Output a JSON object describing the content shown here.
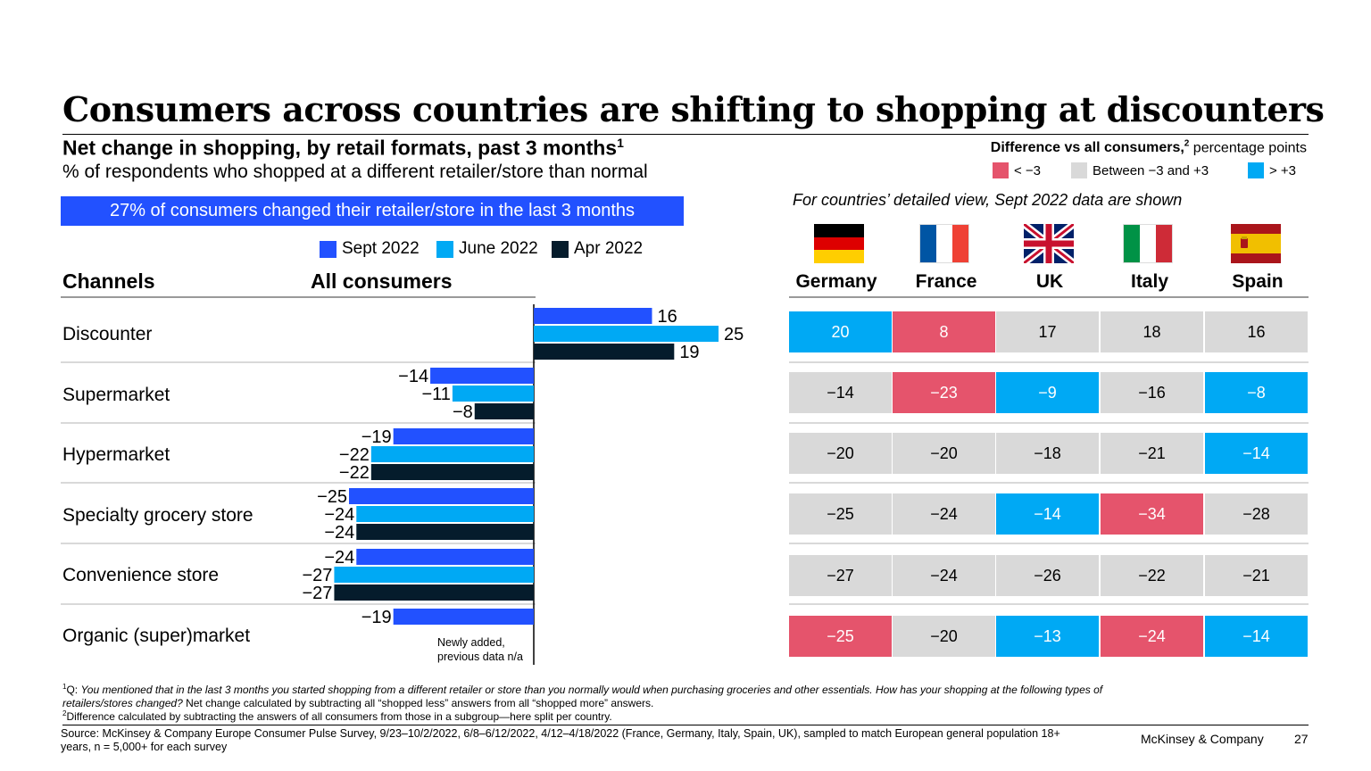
{
  "title": "Consumers across countries are shifting to shopping at discounters",
  "subtitle": "Net change in shopping, by retail formats, past 3 months",
  "subtitle_sup": "1",
  "subtitle2": "% of respondents who shopped at a different retailer/store than normal",
  "banner": "27% of consumers changed their retailer/store in the last 3 months",
  "legend": [
    {
      "label": "Sept 2022",
      "color": "#2251ff"
    },
    {
      "label": "June 2022",
      "color": "#00a9f4"
    },
    {
      "label": "Apr 2022",
      "color": "#051c2c"
    }
  ],
  "headers": {
    "channels": "Channels",
    "all": "All consumers"
  },
  "diff": {
    "title_bold": "Difference vs all consumers,",
    "title_sup": "2",
    "title_rest": " percentage points",
    "items": [
      {
        "label": "< −3",
        "color": "#e5546c"
      },
      {
        "label": "Between −3 and +3",
        "color": "#d9d9d9"
      },
      {
        "label": "> +3",
        "color": "#00a9f4"
      }
    ]
  },
  "country_note": "For countries’ detailed view, Sept 2022 data are shown",
  "countries": [
    {
      "name": "Germany",
      "flag": "germany-flag-icon"
    },
    {
      "name": "France",
      "flag": "france-flag-icon"
    },
    {
      "name": "UK",
      "flag": "uk-flag-icon"
    },
    {
      "name": "Italy",
      "flag": "italy-flag-icon"
    },
    {
      "name": "Spain",
      "flag": "spain-flag-icon"
    }
  ],
  "newly_added": [
    "Newly added,",
    "previous data n/a"
  ],
  "chart_data": {
    "type": "bar",
    "orientation": "horizontal",
    "categories": [
      "Discounter",
      "Supermarket",
      "Hypermarket",
      "Specialty grocery store",
      "Convenience store",
      "Organic (super)market"
    ],
    "series": [
      {
        "name": "Sept 2022",
        "values": [
          16,
          -14,
          -19,
          -25,
          -24,
          -19
        ]
      },
      {
        "name": "June 2022",
        "values": [
          25,
          -11,
          -22,
          -24,
          -27,
          null
        ]
      },
      {
        "name": "Apr 2022",
        "values": [
          19,
          -8,
          -22,
          -24,
          -27,
          null
        ]
      }
    ],
    "xlabel": "",
    "ylabel": "",
    "grid": false
  },
  "country_table": {
    "rows": [
      {
        "values": [
          "20",
          "8",
          "17",
          "18",
          "16"
        ],
        "classes": [
          "pos",
          "neg",
          "neu",
          "neu",
          "neu"
        ]
      },
      {
        "values": [
          "−14",
          "−23",
          "−9",
          "−16",
          "−8"
        ],
        "classes": [
          "neu",
          "neg",
          "pos",
          "neu",
          "pos"
        ]
      },
      {
        "values": [
          "−20",
          "−20",
          "−18",
          "−21",
          "−14"
        ],
        "classes": [
          "neu",
          "neu",
          "neu",
          "neu",
          "pos"
        ]
      },
      {
        "values": [
          "−25",
          "−24",
          "−14",
          "−34",
          "−28"
        ],
        "classes": [
          "neu",
          "neu",
          "pos",
          "neg",
          "neu"
        ]
      },
      {
        "values": [
          "−27",
          "−24",
          "−26",
          "−22",
          "−21"
        ],
        "classes": [
          "neu",
          "neu",
          "neu",
          "neu",
          "neu"
        ]
      },
      {
        "values": [
          "−25",
          "−20",
          "−13",
          "−24",
          "−14"
        ],
        "classes": [
          "neg",
          "neu",
          "pos",
          "neg",
          "pos"
        ]
      }
    ],
    "colors": {
      "pos": "#00a9f4",
      "neg": "#e5546c",
      "neu": "#d9d9d9"
    }
  },
  "footnote1_sup": "1",
  "footnote1_q": "Q: ",
  "footnote1_italic": "You mentioned that in the last 3 months you started shopping from a different retailer or store than you normally would when purchasing groceries and other essentials. How has your shopping at the following types of retailers/stores changed?",
  "footnote1_rest": " Net change calculated by subtracting all “shopped less” answers from all “shopped more” answers.",
  "footnote2_sup": "2",
  "footnote2": "Difference calculated by subtracting the answers of all consumers from those in a subgroup—here split per country.",
  "source": "Source: McKinsey & Company Europe Consumer Pulse Survey, 9/23–10/2/2022, 6/8–6/12/2022, 4/12–4/18/2022 (France, Germany, Italy, Spain, UK), sampled to match European general population 18+ years, n = 5,000+ for each survey",
  "brand": "McKinsey & Company",
  "page": "27"
}
